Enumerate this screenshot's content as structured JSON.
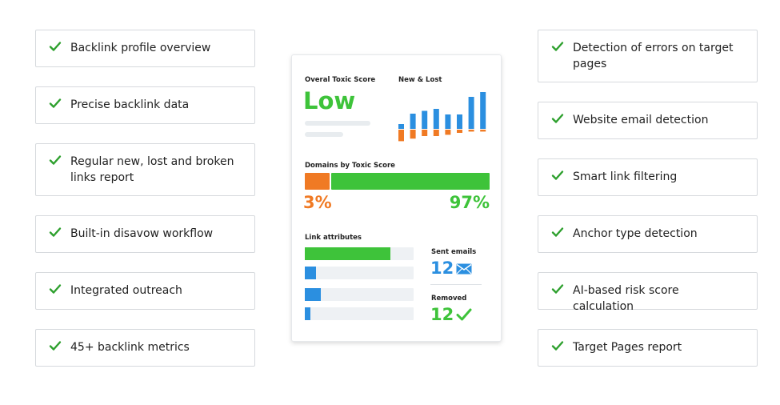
{
  "left_features": [
    {
      "label": "Backlink profile overview"
    },
    {
      "label": "Precise backlink data"
    },
    {
      "label": "Regular new, lost and broken links report"
    },
    {
      "label": "Built-in disavow workflow"
    },
    {
      "label": "Integrated outreach"
    },
    {
      "label": "45+ backlink metrics"
    }
  ],
  "right_features": [
    {
      "label": "Detection of errors on target pages"
    },
    {
      "label": "Website email detection"
    },
    {
      "label": "Smart link filtering"
    },
    {
      "label": "Anchor type detection"
    },
    {
      "label": "AI-based risk score calculation"
    },
    {
      "label": "Target Pages report"
    }
  ],
  "panel": {
    "toxic_title": "Overal Toxic Score",
    "toxic_value": "Low",
    "new_lost_title": "New & Lost",
    "new_lost_bars": {
      "new": [
        0.12,
        0.38,
        0.45,
        0.5,
        0.36,
        0.36,
        0.8,
        0.92,
        0.97
      ],
      "lost": [
        0.18,
        0.14,
        0.1,
        0.1,
        0.08,
        0.05,
        0.03,
        0.03,
        0.03
      ]
    },
    "domains_title": "Domains by Toxic Score",
    "domains_left_pct": "3%",
    "domains_right_pct": "97%",
    "domains_left_fraction": 0.03,
    "link_attr_title": "Link attributes",
    "link_attr_fill": [
      0.79,
      0.1,
      0.15,
      0.05
    ],
    "sent_emails_title": "Sent emails",
    "sent_emails_value": "12",
    "removed_title": "Removed",
    "removed_value": "12"
  },
  "colors": {
    "green": "#3ec33a",
    "orange": "#f07a24",
    "blue": "#2b8fe0",
    "check": "#2ea02e"
  },
  "icons": {
    "check": "check-icon",
    "mail": "mail-icon"
  }
}
